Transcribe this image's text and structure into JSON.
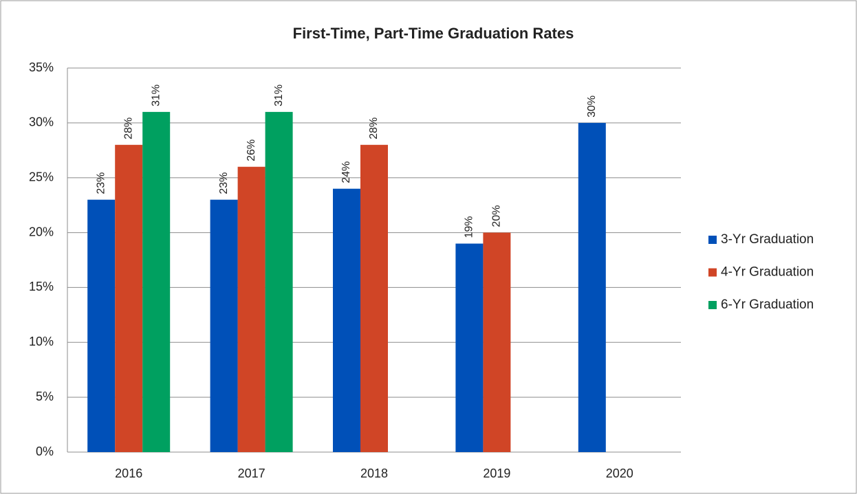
{
  "chart_data": {
    "type": "bar",
    "title": "First-Time, Part-Time Graduation Rates",
    "categories": [
      "2016",
      "2017",
      "2018",
      "2019",
      "2020"
    ],
    "series": [
      {
        "name": "3-Yr Graduation",
        "color": "#0050b8",
        "values": [
          23,
          23,
          24,
          19,
          30
        ],
        "value_labels": [
          "23%",
          "23%",
          "24%",
          "19%",
          "30%"
        ]
      },
      {
        "name": "4-Yr Graduation",
        "color": "#d04526",
        "values": [
          28,
          26,
          28,
          20,
          null
        ],
        "value_labels": [
          "28%",
          "26%",
          "28%",
          "20%",
          null
        ]
      },
      {
        "name": "6-Yr Graduation",
        "color": "#00a060",
        "values": [
          31,
          31,
          null,
          null,
          null
        ],
        "value_labels": [
          "31%",
          "31%",
          null,
          null,
          null
        ]
      }
    ],
    "ylim": [
      0,
      35
    ],
    "yticks": [
      {
        "value": 0,
        "label": "0%"
      },
      {
        "value": 5,
        "label": "5%"
      },
      {
        "value": 10,
        "label": "10%"
      },
      {
        "value": 15,
        "label": "15%"
      },
      {
        "value": 20,
        "label": "20%"
      },
      {
        "value": 25,
        "label": "25%"
      },
      {
        "value": 30,
        "label": "30%"
      },
      {
        "value": 35,
        "label": "35%"
      }
    ],
    "grid": true,
    "legend": "right"
  }
}
